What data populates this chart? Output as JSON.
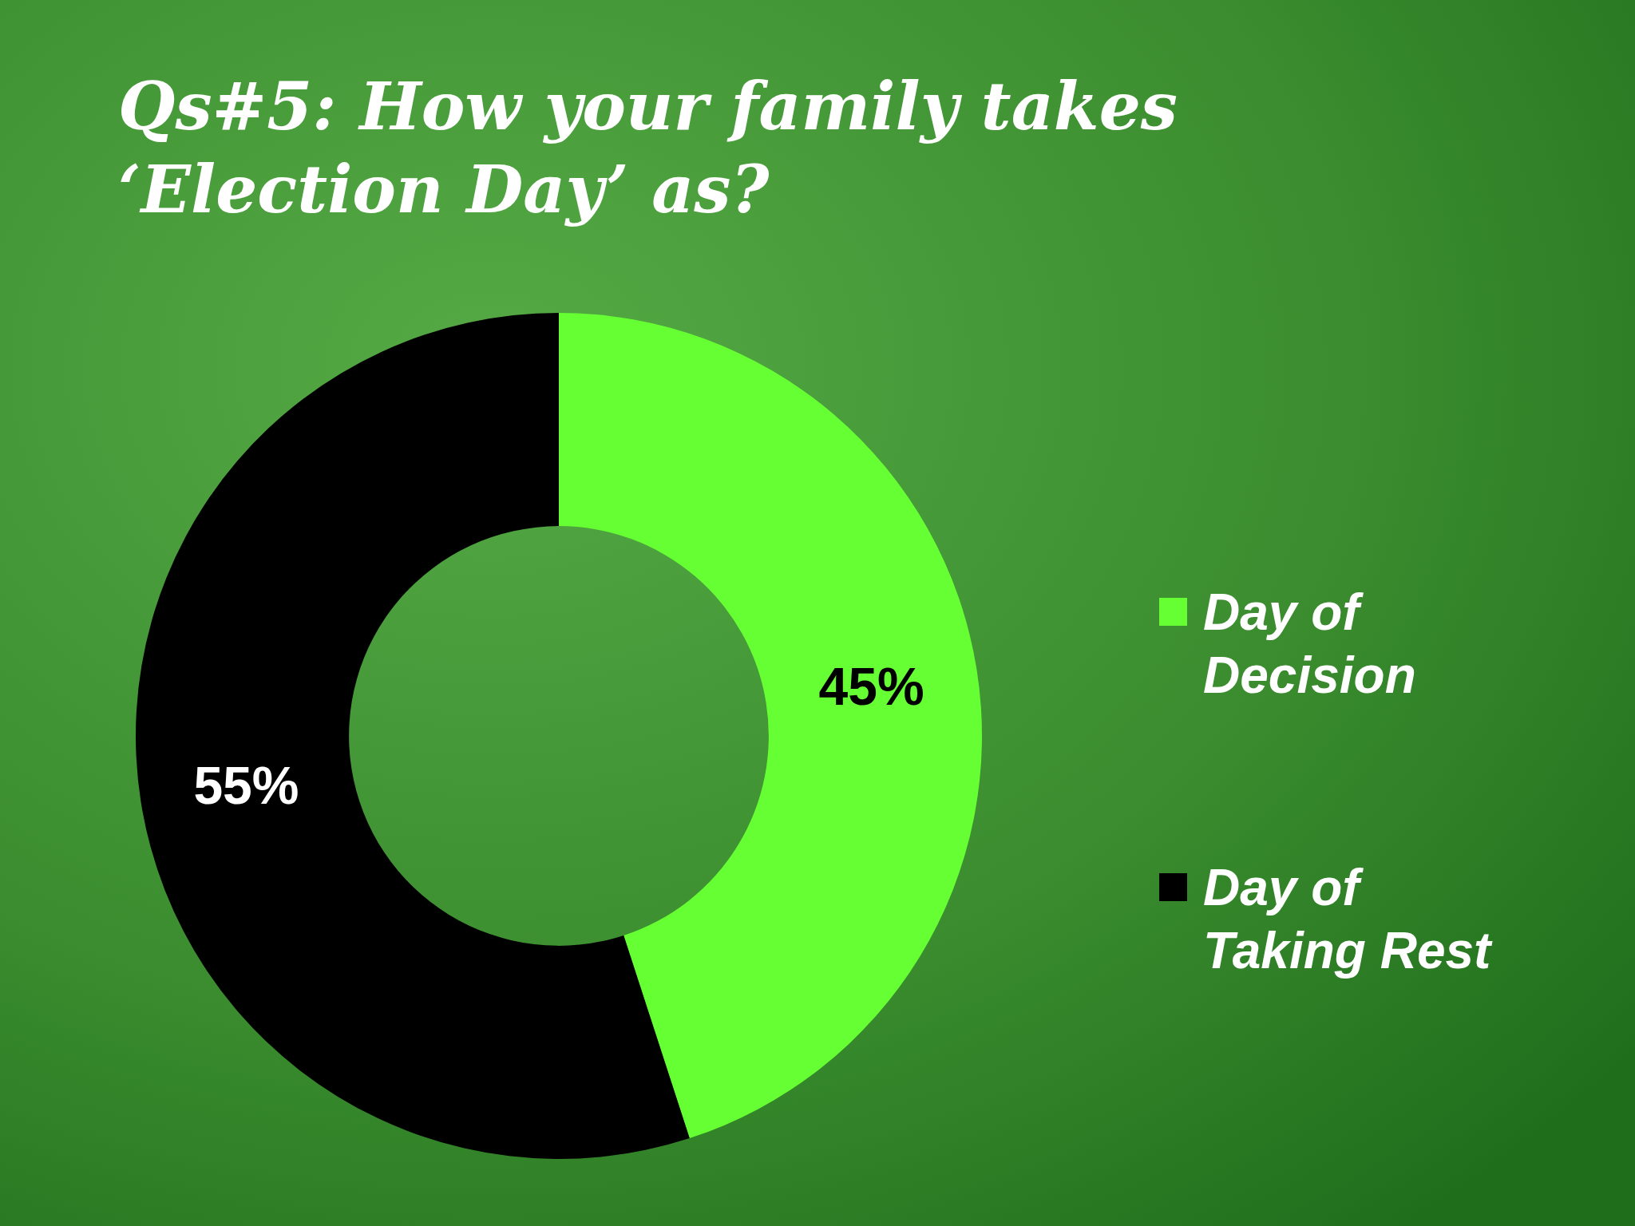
{
  "chart_data": {
    "type": "donut",
    "title": "Qs#5: How your family takes ‘Election Day’ as?",
    "categories": [
      "Day of Decision",
      "Day of Taking Rest"
    ],
    "values": [
      45,
      55
    ],
    "colors": [
      "#66ff33",
      "#000000"
    ],
    "value_labels": [
      "45%",
      "55%"
    ],
    "legend": "right"
  }
}
